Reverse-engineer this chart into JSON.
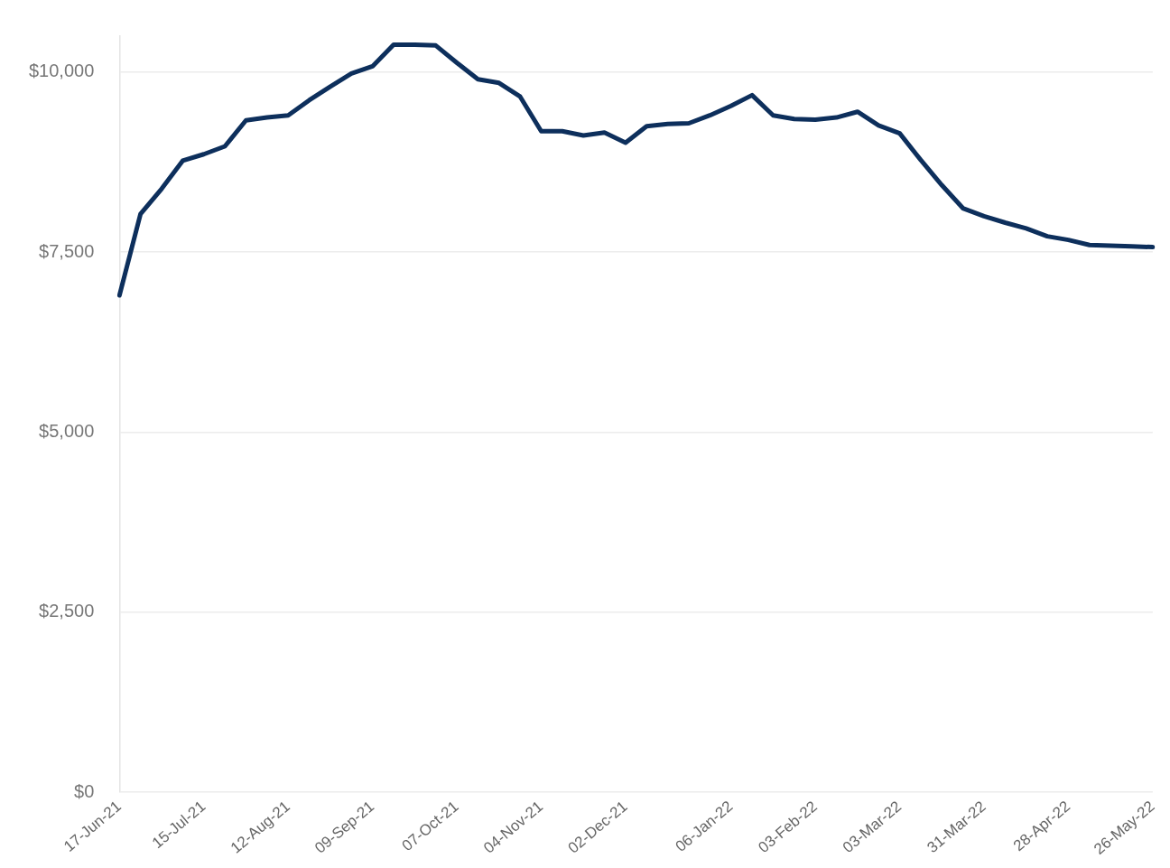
{
  "chart_data": {
    "type": "line",
    "categories": [
      "17-Jun-21",
      null,
      null,
      null,
      "15-Jul-21",
      null,
      null,
      null,
      "12-Aug-21",
      null,
      null,
      null,
      "09-Sep-21",
      null,
      null,
      null,
      "07-Oct-21",
      null,
      null,
      null,
      "04-Nov-21",
      null,
      null,
      null,
      "02-Dec-21",
      null,
      null,
      null,
      null,
      "06-Jan-22",
      null,
      null,
      null,
      "03-Feb-22",
      null,
      null,
      null,
      "03-Mar-22",
      null,
      null,
      null,
      "31-Mar-22",
      null,
      null,
      null,
      "28-Apr-22",
      null,
      null,
      null,
      "26-May-22"
    ],
    "series": [
      {
        "color": "#0d2f5c",
        "values": [
          6900,
          8030,
          8380,
          8770,
          8860,
          8970,
          9330,
          9370,
          9400,
          9610,
          9800,
          9980,
          10080,
          10380,
          10380,
          10370,
          10130,
          9900,
          9850,
          9660,
          9180,
          9180,
          9120,
          9160,
          9020,
          9250,
          9280,
          9290,
          9400,
          9530,
          9680,
          9400,
          9350,
          9340,
          9370,
          9450,
          9260,
          9150,
          8780,
          8430,
          8110,
          8000,
          7910,
          7830,
          7720,
          7670,
          7600,
          7590,
          7580,
          7570
        ]
      }
    ],
    "ylim": [
      0,
      10500
    ],
    "yticks": [
      {
        "value": 0,
        "label": "$0"
      },
      {
        "value": 2500,
        "label": "$2,500"
      },
      {
        "value": 5000,
        "label": "$5,000"
      },
      {
        "value": 7500,
        "label": "$7,500"
      },
      {
        "value": 10000,
        "label": "$10,000"
      }
    ],
    "grid": "y",
    "legend": false,
    "marker": "none",
    "line_style": "solid"
  }
}
